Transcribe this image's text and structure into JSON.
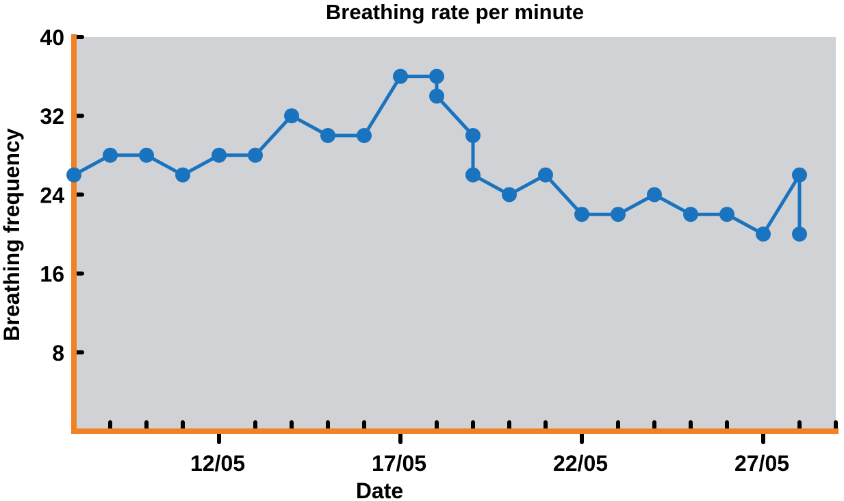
{
  "chart_data": {
    "type": "line",
    "title": "Breathing rate per minute",
    "xlabel": "Date",
    "ylabel": "Breathing frequency",
    "ylim": [
      0,
      40
    ],
    "y_ticks": [
      8,
      16,
      24,
      32,
      40
    ],
    "x_range": [
      "2005-05-08",
      "2005-05-29"
    ],
    "x_tick_labels": [
      {
        "date": "2005-05-12",
        "label": "12/05"
      },
      {
        "date": "2005-05-17",
        "label": "17/05"
      },
      {
        "date": "2005-05-22",
        "label": "22/05"
      },
      {
        "date": "2005-05-27",
        "label": "27/05"
      }
    ],
    "x_minor_tick_dates": [
      "2005-05-09",
      "2005-05-10",
      "2005-05-11",
      "2005-05-13",
      "2005-05-14",
      "2005-05-15",
      "2005-05-16",
      "2005-05-18",
      "2005-05-19",
      "2005-05-20",
      "2005-05-21",
      "2005-05-23",
      "2005-05-24",
      "2005-05-25",
      "2005-05-26",
      "2005-05-28",
      "2005-05-29"
    ],
    "grid": false,
    "series": [
      {
        "color": "#1a73be",
        "points": [
          {
            "x": "2005-05-08",
            "y": 26
          },
          {
            "x": "2005-05-09",
            "y": 28
          },
          {
            "x": "2005-05-10",
            "y": 28
          },
          {
            "x": "2005-05-11",
            "y": 26
          },
          {
            "x": "2005-05-12",
            "y": 28
          },
          {
            "x": "2005-05-13",
            "y": 28
          },
          {
            "x": "2005-05-14",
            "y": 32
          },
          {
            "x": "2005-05-15",
            "y": 30
          },
          {
            "x": "2005-05-16",
            "y": 30
          },
          {
            "x": "2005-05-17",
            "y": 36
          },
          {
            "x": "2005-05-18",
            "y": 36
          },
          {
            "x": "2005-05-18",
            "y": 34
          },
          {
            "x": "2005-05-19",
            "y": 30
          },
          {
            "x": "2005-05-19",
            "y": 26
          },
          {
            "x": "2005-05-20",
            "y": 24
          },
          {
            "x": "2005-05-21",
            "y": 26
          },
          {
            "x": "2005-05-22",
            "y": 22
          },
          {
            "x": "2005-05-23",
            "y": 22
          },
          {
            "x": "2005-05-24",
            "y": 24
          },
          {
            "x": "2005-05-25",
            "y": 22
          },
          {
            "x": "2005-05-26",
            "y": 22
          },
          {
            "x": "2005-05-27",
            "y": 20
          },
          {
            "x": "2005-05-28",
            "y": 26
          },
          {
            "x": "2005-05-28",
            "y": 20
          }
        ]
      }
    ],
    "colors": {
      "plot_background": "#d1d2d6",
      "axis": "#f08125",
      "tick": "#000000",
      "series": "#1a73be"
    }
  }
}
